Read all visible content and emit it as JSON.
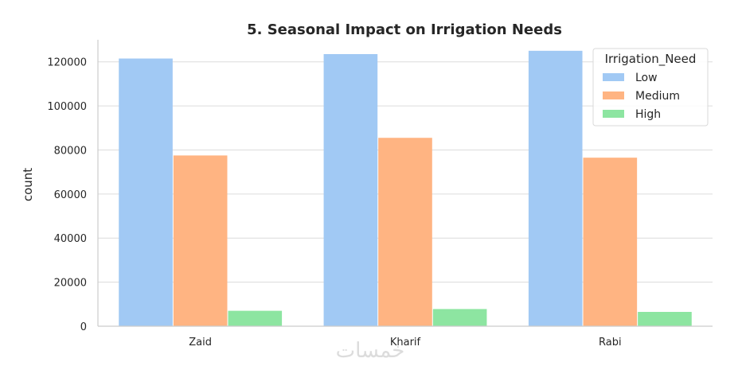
{
  "chart_data": {
    "type": "bar",
    "title": "5. Seasonal Impact on Irrigation Needs",
    "xlabel": "",
    "ylabel": "count",
    "categories": [
      "Zaid",
      "Kharif",
      "Rabi"
    ],
    "series": [
      {
        "name": "Low",
        "values": [
          121500,
          123500,
          125000
        ],
        "color": "#a1c9f4"
      },
      {
        "name": "Medium",
        "values": [
          77500,
          85500,
          76500
        ],
        "color": "#ffb482"
      },
      {
        "name": "High",
        "values": [
          7000,
          7800,
          6500
        ],
        "color": "#8de5a1"
      }
    ],
    "ylim": [
      0,
      130000
    ],
    "yticks": [
      0,
      20000,
      40000,
      60000,
      80000,
      100000,
      120000
    ],
    "ytick_labels": [
      "0",
      "20000",
      "40000",
      "60000",
      "80000",
      "100000",
      "120000"
    ],
    "grid": "horizontal",
    "legend": {
      "title": "Irrigation_Need",
      "placement": "top-right"
    }
  },
  "watermark": "خمسات"
}
